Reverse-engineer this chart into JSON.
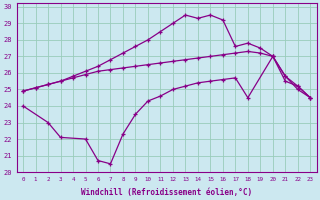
{
  "xlabel": "Windchill (Refroidissement éolien,°C)",
  "bg_color": "#cce8f0",
  "grid_color": "#99ccbb",
  "line_color": "#880088",
  "xlim": [
    -0.5,
    23.5
  ],
  "ylim": [
    20,
    30.2
  ],
  "yticks": [
    20,
    21,
    22,
    23,
    24,
    25,
    26,
    27,
    28,
    29,
    30
  ],
  "xticks": [
    0,
    1,
    2,
    3,
    4,
    5,
    6,
    7,
    8,
    9,
    10,
    11,
    12,
    13,
    14,
    15,
    16,
    17,
    18,
    19,
    20,
    21,
    22,
    23
  ],
  "series": [
    {
      "x": [
        0,
        1,
        2,
        3,
        4,
        5,
        6,
        7,
        8,
        9,
        10,
        11,
        12,
        13,
        14,
        15,
        16,
        17,
        18,
        19,
        20,
        21,
        22,
        23
      ],
      "y": [
        24.9,
        25.1,
        25.3,
        25.5,
        25.8,
        26.1,
        26.4,
        26.8,
        27.2,
        27.6,
        28.0,
        28.5,
        29.0,
        29.5,
        29.3,
        29.5,
        29.2,
        27.6,
        27.8,
        27.5,
        27.0,
        25.8,
        25.2,
        24.5
      ]
    },
    {
      "x": [
        0,
        1,
        2,
        3,
        4,
        5,
        6,
        7,
        8,
        9,
        10,
        11,
        12,
        13,
        14,
        15,
        16,
        17,
        18,
        19,
        20,
        21,
        22,
        23
      ],
      "y": [
        24.9,
        25.1,
        25.3,
        25.5,
        25.7,
        25.9,
        26.1,
        26.2,
        26.3,
        26.4,
        26.5,
        26.6,
        26.7,
        26.8,
        26.9,
        27.0,
        27.1,
        27.2,
        27.3,
        27.2,
        27.0,
        25.8,
        25.0,
        24.5
      ]
    },
    {
      "x": [
        0,
        2,
        3,
        5,
        6,
        7,
        8,
        9,
        10,
        11,
        12,
        13,
        14,
        15,
        16,
        17,
        18,
        20,
        21,
        22,
        23
      ],
      "y": [
        24.0,
        23.0,
        22.1,
        22.0,
        20.7,
        20.5,
        22.3,
        23.5,
        24.3,
        24.6,
        25.0,
        25.2,
        25.4,
        25.5,
        25.6,
        25.7,
        24.5,
        27.0,
        25.5,
        25.2,
        24.5
      ]
    }
  ]
}
